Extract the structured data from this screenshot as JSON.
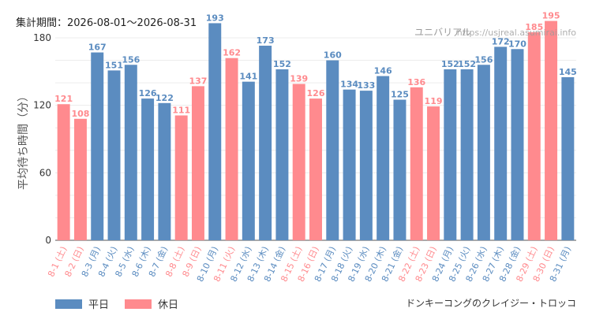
{
  "header": {
    "period_label": "集計期間：2026-08-01～2026-08-31",
    "park": "ユニバリアル",
    "site": "https://usjreal.asumirai.info"
  },
  "footer": {
    "attraction": "ドンキーコングのクレイジー・トロッコ"
  },
  "colors": {
    "weekday": "#5b8cc0",
    "holiday": "#ff8a8e"
  },
  "chart_data": {
    "type": "bar",
    "ylabel": "平均待ち時間（分）",
    "ylim": [
      0,
      180
    ],
    "yticks": [
      0,
      60,
      120,
      180
    ],
    "grid": true,
    "legend_position": "bottom-left",
    "series": [
      {
        "name": "平日",
        "color": "#5b8cc0"
      },
      {
        "name": "休日",
        "color": "#ff8a8e"
      }
    ],
    "categories": [
      "8-1 (土)",
      "8-2 (日)",
      "8-3 (月)",
      "8-4 (火)",
      "8-5 (水)",
      "8-6 (木)",
      "8-7 (金)",
      "8-8 (土)",
      "8-9 (日)",
      "8-10 (月)",
      "8-11 (火)",
      "8-12 (水)",
      "8-13 (木)",
      "8-14 (金)",
      "8-15 (土)",
      "8-16 (日)",
      "8-17 (月)",
      "8-18 (火)",
      "8-19 (水)",
      "8-20 (木)",
      "8-21 (金)",
      "8-22 (土)",
      "8-23 (日)",
      "8-24 (月)",
      "8-25 (火)",
      "8-26 (水)",
      "8-27 (木)",
      "8-28 (金)",
      "8-29 (土)",
      "8-30 (日)",
      "8-31 (月)"
    ],
    "values": [
      121,
      108,
      167,
      151,
      156,
      126,
      122,
      111,
      137,
      193,
      162,
      141,
      173,
      152,
      139,
      126,
      160,
      134,
      133,
      146,
      125,
      136,
      119,
      152,
      152,
      156,
      172,
      170,
      185,
      195,
      145
    ],
    "day_type": [
      "休日",
      "休日",
      "平日",
      "平日",
      "平日",
      "平日",
      "平日",
      "休日",
      "休日",
      "平日",
      "休日",
      "平日",
      "平日",
      "平日",
      "休日",
      "休日",
      "平日",
      "平日",
      "平日",
      "平日",
      "平日",
      "休日",
      "休日",
      "平日",
      "平日",
      "平日",
      "平日",
      "平日",
      "休日",
      "休日",
      "平日"
    ]
  }
}
